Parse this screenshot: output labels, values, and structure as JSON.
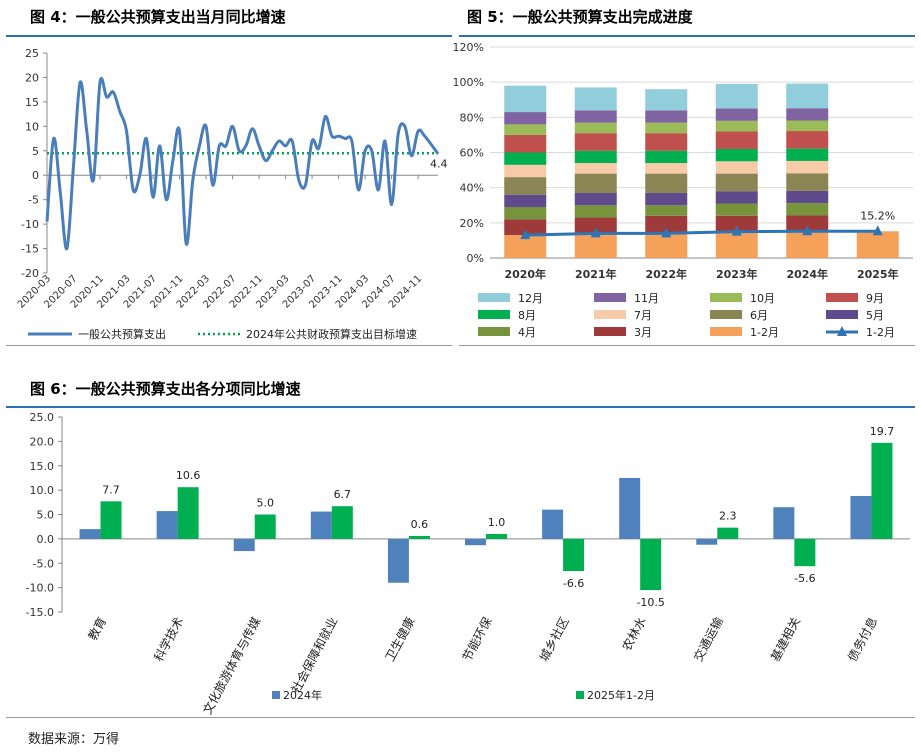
{
  "chart_data": [
    {
      "type": "line",
      "title": "图 4：一般公共预算支出当月同比增速",
      "x_ticks": [
        "2020-03",
        "2020-07",
        "2020-11",
        "2021-03",
        "2021-07",
        "2021-11",
        "2022-03",
        "2022-07",
        "2022-11",
        "2023-03",
        "2023-07",
        "2023-11",
        "2024-03",
        "2024-07",
        "2024-11"
      ],
      "x_start": "2020-03",
      "x_end": "2025-02",
      "ylim": [
        -20,
        25
      ],
      "y_ticks": [
        -20,
        -15,
        -10,
        -5,
        0,
        5,
        10,
        15,
        20,
        25
      ],
      "last_value_label": "4.4",
      "series": [
        {
          "name": "一般公共预算支出",
          "color": "#4a7ebb",
          "points": [
            [
              "2020-03",
              -9.5
            ],
            [
              "2020-04",
              7.5
            ],
            [
              "2020-05",
              -3.5
            ],
            [
              "2020-06",
              -15
            ],
            [
              "2020-07",
              2
            ],
            [
              "2020-08",
              19
            ],
            [
              "2020-09",
              9
            ],
            [
              "2020-10",
              -1
            ],
            [
              "2020-11",
              19
            ],
            [
              "2020-12",
              16
            ],
            [
              "2021-01",
              17
            ],
            [
              "2021-02",
              13
            ],
            [
              "2021-03",
              9
            ],
            [
              "2021-04",
              -3
            ],
            [
              "2021-05",
              0
            ],
            [
              "2021-06",
              7.5
            ],
            [
              "2021-07",
              -4.5
            ],
            [
              "2021-08",
              6
            ],
            [
              "2021-09",
              -5
            ],
            [
              "2021-10",
              3
            ],
            [
              "2021-11",
              9
            ],
            [
              "2021-12",
              -14
            ],
            [
              "2022-01",
              -1
            ],
            [
              "2022-02",
              6
            ],
            [
              "2022-03",
              10
            ],
            [
              "2022-04",
              -2
            ],
            [
              "2022-05",
              6
            ],
            [
              "2022-06",
              6
            ],
            [
              "2022-07",
              10
            ],
            [
              "2022-08",
              5
            ],
            [
              "2022-09",
              6
            ],
            [
              "2022-10",
              9.5
            ],
            [
              "2022-11",
              6
            ],
            [
              "2022-12",
              3
            ],
            [
              "2023-01",
              5
            ],
            [
              "2023-02",
              7
            ],
            [
              "2023-03",
              6
            ],
            [
              "2023-04",
              7
            ],
            [
              "2023-05",
              -1
            ],
            [
              "2023-06",
              -2
            ],
            [
              "2023-07",
              7
            ],
            [
              "2023-08",
              5.5
            ],
            [
              "2023-09",
              12
            ],
            [
              "2023-10",
              8
            ],
            [
              "2023-11",
              8
            ],
            [
              "2023-12",
              7.5
            ],
            [
              "2024-01",
              7
            ],
            [
              "2024-02",
              -3
            ],
            [
              "2024-03",
              5
            ],
            [
              "2024-04",
              5
            ],
            [
              "2024-05",
              -3
            ],
            [
              "2024-06",
              7
            ],
            [
              "2024-07",
              -6
            ],
            [
              "2024-08",
              8.5
            ],
            [
              "2024-09",
              10
            ],
            [
              "2024-10",
              4
            ],
            [
              "2024-11",
              9
            ],
            [
              "2024-12",
              8
            ],
            [
              "2025-02",
              4.4
            ]
          ]
        },
        {
          "name": "2024年公共财政预算支出目标增速",
          "color": "#00a550",
          "value": 4.5
        }
      ]
    },
    {
      "type": "bar",
      "subtype": "stacked",
      "title": "图 5：一般公共预算支出完成进度",
      "categories": [
        "2020年",
        "2021年",
        "2022年",
        "2023年",
        "2024年",
        "2025年"
      ],
      "ylim": [
        0,
        120
      ],
      "y_ticks": [
        "0%",
        "20%",
        "40%",
        "60%",
        "80%",
        "100%",
        "120%"
      ],
      "series": [
        {
          "name": "1-2月",
          "color": "#f5a15a",
          "values": [
            13,
            14,
            14,
            15,
            15.2,
            15.2
          ]
        },
        {
          "name": "3月",
          "color": "#9e3a3a",
          "values": [
            9,
            9,
            10,
            9,
            9,
            0
          ]
        },
        {
          "name": "4月",
          "color": "#77933c",
          "values": [
            7,
            7,
            6,
            7,
            7,
            0
          ]
        },
        {
          "name": "5月",
          "color": "#5f4b8b",
          "values": [
            7,
            7,
            7,
            7,
            7,
            0
          ]
        },
        {
          "name": "6月",
          "color": "#8b8453",
          "values": [
            10,
            11,
            11,
            10,
            10,
            0
          ]
        },
        {
          "name": "7月",
          "color": "#f8cba8",
          "values": [
            7,
            6,
            6,
            7,
            7,
            0
          ]
        },
        {
          "name": "8月",
          "color": "#00b050",
          "values": [
            7,
            7,
            7,
            7,
            7,
            0
          ]
        },
        {
          "name": "9月",
          "color": "#c0504d",
          "values": [
            10,
            10,
            10,
            10,
            10,
            0
          ]
        },
        {
          "name": "10月",
          "color": "#9bbb59",
          "values": [
            6,
            6,
            6,
            6,
            6,
            0
          ]
        },
        {
          "name": "11月",
          "color": "#8064a2",
          "values": [
            7,
            7,
            7,
            7,
            7,
            0
          ]
        },
        {
          "name": "12月",
          "color": "#92cddc",
          "values": [
            15,
            13,
            12,
            14,
            14,
            0
          ]
        }
      ],
      "line": {
        "name": "1-2月",
        "color": "#2e75b6",
        "values": [
          13,
          14,
          14,
          15,
          15.2,
          15.2
        ]
      },
      "annotation": "15.2%"
    },
    {
      "type": "bar",
      "title": "图 6：一般公共预算支出各分项同比增速",
      "categories": [
        "教育",
        "科学技术",
        "文化旅游体育与传媒",
        "社会保障和就业",
        "卫生健康",
        "节能环保",
        "城乡社区",
        "农林水",
        "交通运输",
        "基建相关",
        "债务付息"
      ],
      "ylim": [
        -15,
        25
      ],
      "y_ticks": [
        "-15.0",
        "-10.0",
        "-5.0",
        "0.0",
        "5.0",
        "10.0",
        "15.0",
        "20.0",
        "25.0"
      ],
      "series": [
        {
          "name": "2024年",
          "color": "#4f81bd",
          "values": [
            2,
            5.7,
            -2.5,
            5.6,
            -9,
            -1.3,
            6,
            12.5,
            -1.2,
            6.5,
            8.8
          ]
        },
        {
          "name": "2025年1-2月",
          "color": "#00b050",
          "values": [
            7.7,
            10.6,
            5.0,
            6.7,
            0.6,
            1.0,
            -6.6,
            -10.5,
            2.3,
            -5.6,
            19.7
          ],
          "labels": [
            "7.7",
            "10.6",
            "5.0",
            "6.7",
            "0.6",
            "1.0",
            "-6.6",
            "-10.5",
            "2.3",
            "-5.6",
            "19.7"
          ]
        }
      ]
    }
  ],
  "source": "数据来源：万得"
}
